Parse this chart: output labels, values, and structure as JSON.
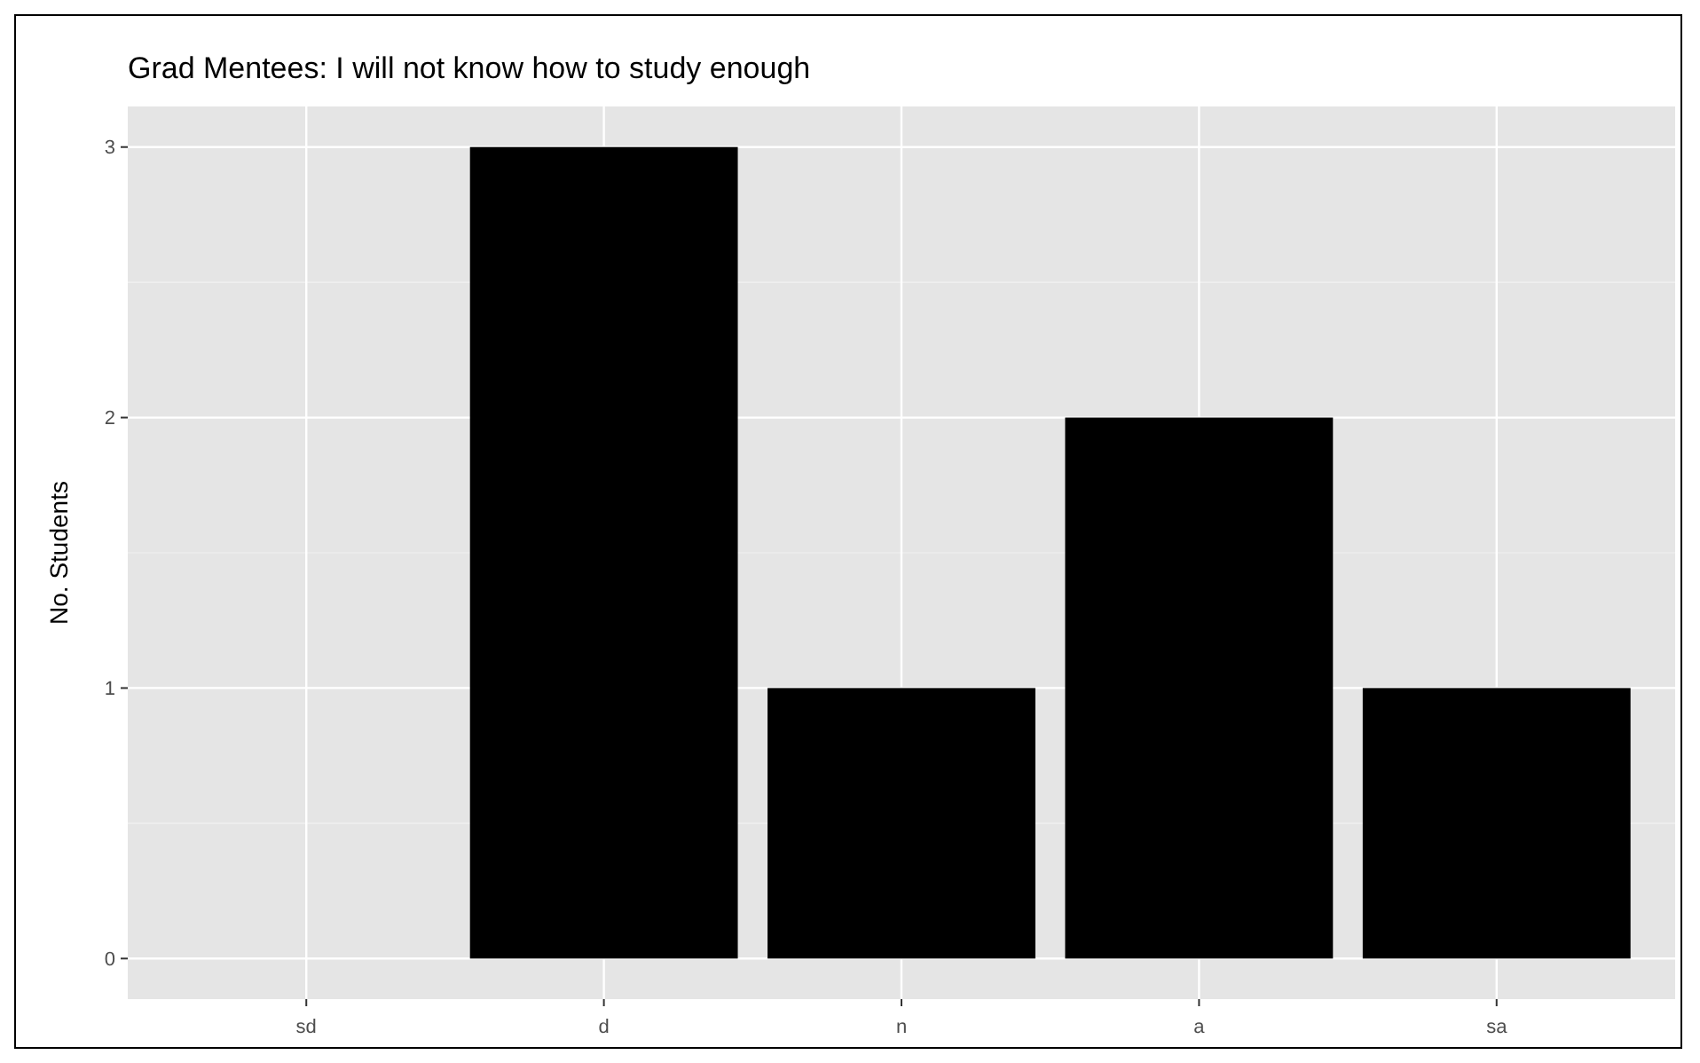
{
  "chart_data": {
    "type": "bar",
    "title": "Grad Mentees: I will not know how to study enough",
    "ylabel": "No. Students",
    "categories": [
      "sd",
      "d",
      "n",
      "a",
      "sa"
    ],
    "values": [
      0,
      3,
      1,
      2,
      1
    ],
    "color": "#000000",
    "ylim": [
      -0.15,
      3.15
    ],
    "yticks": [
      0,
      1,
      2,
      3
    ],
    "grid": true
  }
}
